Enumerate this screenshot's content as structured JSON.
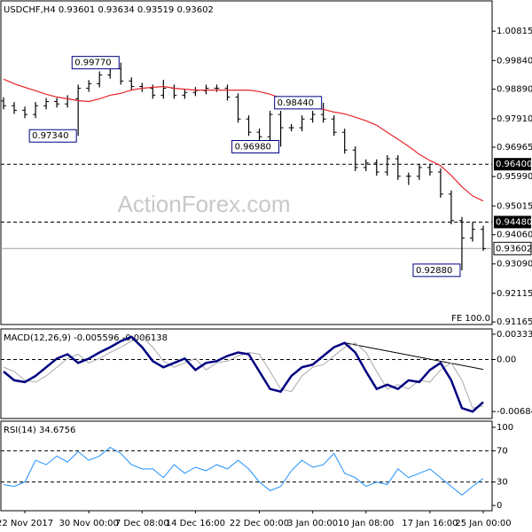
{
  "chart_data": [
    {
      "type": "ohlc",
      "title": "USDCHF,H4 0.93601 0.93634 0.93519 0.93602",
      "watermark": "ActionForex.com",
      "footnote": "FE 100.0",
      "ylim": [
        0.9108,
        1.0179
      ],
      "yticks": [
        1.00815,
        {
          "value": 0.9984,
          "label": "0.99840"
        },
        {
          "value": 0.9889,
          "label": "0.98890"
        },
        {
          "value": 0.9791,
          "label": "0.97910"
        },
        0.96965,
        {
          "value": 0.9599,
          "label": "0.95990"
        },
        0.95015,
        {
          "value": 0.9406,
          "label": "0.94060"
        },
        {
          "value": 0.9309,
          "label": "0.93090"
        },
        0.92115,
        0.91165
      ],
      "bar_color": "#000000",
      "open": [
        0.985,
        0.9834,
        0.9819,
        0.9805,
        0.9834,
        0.9848,
        0.984,
        0.9857,
        0.9892,
        0.9907,
        0.9936,
        0.9957,
        0.9916,
        0.9898,
        0.9892,
        0.9869,
        0.9892,
        0.9869,
        0.9878,
        0.9884,
        0.9892,
        0.9892,
        0.9863,
        0.979,
        0.9746,
        0.9731,
        0.9805,
        0.9761,
        0.9761,
        0.979,
        0.9805,
        0.979,
        0.9746,
        0.9687,
        0.9629,
        0.9644,
        0.9614,
        0.9658,
        0.96,
        0.96,
        0.9629,
        0.9614,
        0.9541,
        0.9453,
        0.9395,
        0.9424
      ],
      "high": [
        0.9862,
        0.9846,
        0.9831,
        0.9846,
        0.986,
        0.986,
        0.9869,
        0.9904,
        0.9919,
        0.9948,
        0.9969,
        0.9977,
        0.9928,
        0.991,
        0.9904,
        0.992,
        0.9904,
        0.989,
        0.9896,
        0.9904,
        0.9904,
        0.9904,
        0.9875,
        0.9802,
        0.9758,
        0.9817,
        0.9817,
        0.9773,
        0.9802,
        0.9817,
        0.9844,
        0.9802,
        0.9758,
        0.9699,
        0.9656,
        0.9656,
        0.967,
        0.967,
        0.9612,
        0.9641,
        0.9641,
        0.9626,
        0.9553,
        0.9465,
        0.9448,
        0.9436
      ],
      "low": [
        0.9822,
        0.9807,
        0.9793,
        0.9793,
        0.9822,
        0.9828,
        0.9828,
        0.9734,
        0.988,
        0.9895,
        0.9924,
        0.9904,
        0.9886,
        0.988,
        0.9857,
        0.9857,
        0.9857,
        0.9857,
        0.9866,
        0.9872,
        0.988,
        0.9851,
        0.9778,
        0.9734,
        0.9719,
        0.9719,
        0.9698,
        0.9749,
        0.9749,
        0.9778,
        0.9778,
        0.9734,
        0.9675,
        0.9617,
        0.9617,
        0.9602,
        0.9602,
        0.9588,
        0.9571,
        0.9588,
        0.9602,
        0.9529,
        0.9441,
        0.9288,
        0.9383,
        0.9352
      ],
      "close": [
        0.9834,
        0.9819,
        0.9805,
        0.9834,
        0.9848,
        0.984,
        0.9857,
        0.9892,
        0.9907,
        0.9936,
        0.9957,
        0.9916,
        0.9898,
        0.9892,
        0.9869,
        0.9892,
        0.9869,
        0.9878,
        0.9884,
        0.9892,
        0.9892,
        0.9863,
        0.979,
        0.9746,
        0.9731,
        0.9805,
        0.9761,
        0.9761,
        0.979,
        0.9805,
        0.979,
        0.9746,
        0.9687,
        0.9629,
        0.9644,
        0.9614,
        0.9658,
        0.96,
        0.96,
        0.9629,
        0.9614,
        0.9541,
        0.9453,
        0.9395,
        0.9424,
        0.936
      ],
      "ma": {
        "color": "#e8262a",
        "values": [
          0.9922,
          0.9907,
          0.9895,
          0.9884,
          0.9872,
          0.9863,
          0.9857,
          0.9851,
          0.9848,
          0.9857,
          0.9869,
          0.9875,
          0.9886,
          0.9892,
          0.9895,
          0.9898,
          0.9892,
          0.9889,
          0.9886,
          0.9886,
          0.9886,
          0.9886,
          0.9886,
          0.9886,
          0.9881,
          0.9872,
          0.986,
          0.9845,
          0.9834,
          0.9828,
          0.9822,
          0.9813,
          0.9807,
          0.9796,
          0.9784,
          0.9769,
          0.9746,
          0.9723,
          0.9699,
          0.9673,
          0.9652,
          0.9635,
          0.9603,
          0.9565,
          0.9535,
          0.9518
        ]
      },
      "levels": [
        {
          "value": 0.964,
          "label": "0.96400"
        },
        {
          "value": 0.9448,
          "label": "0.94480"
        }
      ],
      "last_price": {
        "value": 0.93602,
        "label": "0.93602"
      },
      "annotations": [
        {
          "value": 0.9977,
          "label": "0.99770"
        },
        {
          "value": 0.9734,
          "label": "0.97340"
        },
        {
          "value": 0.9698,
          "label": "0.96980"
        },
        {
          "value": 0.9844,
          "label": "0.98440"
        },
        {
          "value": 0.9288,
          "label": "0.92880"
        }
      ]
    },
    {
      "type": "line",
      "title": "MACD(12,26,9) -0.005596 -0.006138",
      "ylim": [
        -0.00776,
        0.00391
      ],
      "yticks": [
        0.003335,
        {
          "value": 0,
          "label": "0.00"
        },
        -0.006843
      ],
      "grid": true,
      "series": [
        {
          "color": "#000080",
          "values": [
            -0.00158,
            -0.00273,
            -0.00296,
            -0.00216,
            -0.00101,
            0.00013,
            0.0007,
            -0.00044,
            0.00013,
            0.00093,
            0.00162,
            0.00242,
            0.00299,
            0.00162,
            -0.00021,
            -0.00101,
            -0.00044,
            0.00013,
            -0.00136,
            -0.00044,
            -0.00021,
            0.00048,
            0.00093,
            0.0007,
            -0.00158,
            -0.00387,
            -0.00422,
            -0.00216,
            -0.00101,
            -0.00067,
            0.00048,
            0.00162,
            0.00219,
            0.00093,
            -0.00158,
            -0.00387,
            -0.0033,
            -0.00387,
            -0.00273,
            -0.00296,
            -0.00136,
            -0.00044,
            -0.00273,
            -0.00639,
            -0.00685,
            -0.0056
          ]
        },
        {
          "color": "#a9a9a9",
          "values": [
            -0.001,
            -0.00158,
            -0.00273,
            -0.00296,
            -0.00216,
            -0.00101,
            0.00013,
            0.0007,
            -0.00044,
            0.00013,
            0.00093,
            0.00162,
            0.00242,
            0.00299,
            0.00162,
            -0.00021,
            -0.00101,
            -0.00044,
            0.00013,
            -0.00136,
            -0.00044,
            -0.00021,
            0.00048,
            0.00093,
            0.0007,
            -0.00158,
            -0.00387,
            -0.00422,
            -0.00216,
            -0.00101,
            -0.00067,
            0.00048,
            0.00162,
            0.00219,
            0.00093,
            -0.00158,
            -0.00387,
            -0.0033,
            -0.00387,
            -0.00273,
            -0.00296,
            -0.00136,
            -0.00044,
            -0.00273,
            -0.00639,
            -0.0061
          ]
        }
      ],
      "trendline": [
        0.0022,
        -0.0013
      ]
    },
    {
      "type": "line",
      "title": "RSI(14) 34.6756",
      "ylim": [
        -6.7,
        106.7
      ],
      "yticks": [
        100,
        70,
        30,
        0
      ],
      "grid": true,
      "series": [
        {
          "color": "#1e90ff",
          "values": [
            26.7,
            24.4,
            30,
            57.8,
            52.2,
            63.3,
            55.6,
            68.9,
            57.8,
            63.3,
            74.4,
            66.7,
            52.2,
            46.7,
            46.7,
            35.6,
            52.2,
            41.1,
            48.9,
            44.4,
            52.2,
            46.7,
            57.8,
            46.7,
            30,
            18.9,
            24.4,
            44.4,
            57.8,
            48.9,
            52.2,
            66.7,
            41.1,
            35.6,
            24.4,
            30,
            26.7,
            46.7,
            35.6,
            41.1,
            46.7,
            35.6,
            24.4,
            13.3,
            24.4,
            34.7
          ]
        }
      ],
      "categories": [
        null,
        null,
        "22 Nov 2017",
        null,
        null,
        null,
        null,
        null,
        "30 Nov 00:00",
        null,
        null,
        null,
        null,
        "7 Dec 08:00",
        null,
        null,
        null,
        null,
        "14 Dec 16:00",
        null,
        null,
        null,
        null,
        null,
        "22 Dec 00:00",
        null,
        null,
        null,
        null,
        "3 Jan 00:00",
        null,
        null,
        null,
        null,
        "10 Jan 08:00",
        null,
        null,
        null,
        null,
        null,
        "17 Jan 16:00",
        null,
        null,
        null,
        null,
        "25 Jan 00:00"
      ]
    }
  ]
}
